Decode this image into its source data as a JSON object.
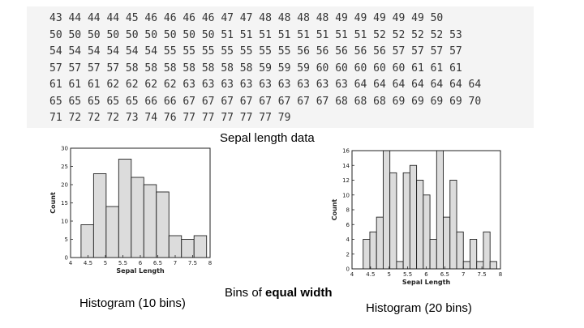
{
  "data_rows": [
    "43 44 44 44 45 46 46 46 46 47 47 48 48 48 48 49 49 49 49 49 50",
    "50 50 50 50 50 50 50 50 50 51 51 51 51 51 51 51 51 52 52 52 52 53",
    "54 54 54 54 54 54 55 55 55 55 55 55 55 56 56 56 56 56 57 57 57 57",
    "57 57 57 57 58 58 58 58 58 58 58 59 59 59 60 60 60 60 60 61 61 61",
    "61 61 61 62 62 62 62 63 63 63 63 63 63 63 63 63 64 64 64 64 64 64 64",
    "65 65 65 65 65 66 66 67 67 67 67 67 67 67 67 68 68 68 69 69 69 69 70",
    "71 72 72 72 73 74 76 77 77 77 77 77 79"
  ],
  "captions": {
    "sepal": "Sepal length data",
    "bins_prefix": "Bins of ",
    "bins_bold": "equal width",
    "hist10": "Histogram (10 bins)",
    "hist20": "Histogram (20 bins)"
  },
  "colors": {
    "bar_fill": "#dcdcdc",
    "bar_stroke": "#222222",
    "panel_bg": "#f4f4f4"
  },
  "chart_data": [
    {
      "type": "bar",
      "xlabel": "Sepal Length",
      "ylabel": "Count",
      "xlim": [
        4,
        8
      ],
      "ylim": [
        0,
        30
      ],
      "x_ticks": [
        "4",
        "4.5",
        "5",
        "5.5",
        "6",
        "6.5",
        "7",
        "7.5",
        "8"
      ],
      "y_ticks": [
        "0",
        "5",
        "10",
        "15",
        "20",
        "25",
        "30"
      ],
      "bin_edges": [
        4.3,
        4.66,
        5.02,
        5.38,
        5.74,
        6.1,
        6.46,
        6.82,
        7.18,
        7.54,
        7.9
      ],
      "values": [
        9,
        23,
        14,
        27,
        22,
        20,
        18,
        6,
        5,
        6
      ]
    },
    {
      "type": "bar",
      "xlabel": "Sepal Length",
      "ylabel": "Count",
      "xlim": [
        4,
        8
      ],
      "ylim": [
        0,
        16
      ],
      "x_ticks": [
        "4",
        "4.5",
        "5",
        "5.5",
        "6",
        "6.5",
        "7",
        "7.5",
        "8"
      ],
      "y_ticks": [
        "0",
        "2",
        "4",
        "6",
        "8",
        "10",
        "12",
        "14",
        "16"
      ],
      "bin_edges": [
        4.3,
        4.48,
        4.66,
        4.84,
        5.02,
        5.2,
        5.38,
        5.56,
        5.74,
        5.92,
        6.1,
        6.28,
        6.46,
        6.64,
        6.82,
        7.0,
        7.18,
        7.36,
        7.54,
        7.72,
        7.9
      ],
      "values": [
        4,
        5,
        7,
        16,
        13,
        1,
        13,
        14,
        12,
        10,
        4,
        16,
        7,
        12,
        5,
        1,
        4,
        1,
        5,
        1
      ]
    }
  ]
}
